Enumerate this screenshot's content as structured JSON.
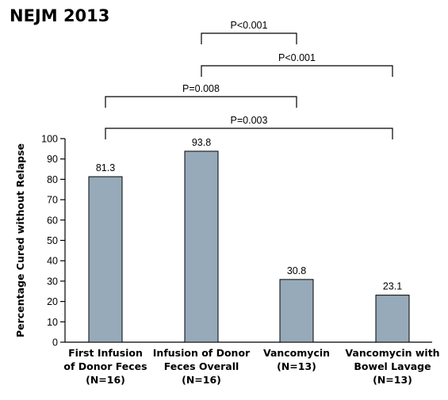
{
  "title": "NEJM 2013",
  "chart_data": {
    "type": "bar",
    "ylabel": "Percentage Cured without Relapse",
    "ylim": [
      0,
      100
    ],
    "yticks": [
      0,
      10,
      20,
      30,
      40,
      50,
      60,
      70,
      80,
      90,
      100
    ],
    "bar_color": "#96aab9",
    "categories": [
      [
        "First Infusion",
        "of Donor Feces",
        "(N=16)"
      ],
      [
        "Infusion of Donor",
        "Feces Overall",
        "(N=16)"
      ],
      [
        "Vancomycin",
        "(N=13)"
      ],
      [
        "Vancomycin with",
        "Bowel Lavage",
        "(N=13)"
      ]
    ],
    "values": [
      81.3,
      93.8,
      30.8,
      23.1
    ],
    "value_labels": [
      "81.3",
      "93.8",
      "30.8",
      "23.1"
    ],
    "comparisons": [
      {
        "label": "P<0.001",
        "from": 1,
        "to": 2
      },
      {
        "label": "P<0.001",
        "from": 1,
        "to": 3
      },
      {
        "label": "P=0.008",
        "from": 0,
        "to": 2
      },
      {
        "label": "P=0.003",
        "from": 0,
        "to": 3
      }
    ]
  }
}
